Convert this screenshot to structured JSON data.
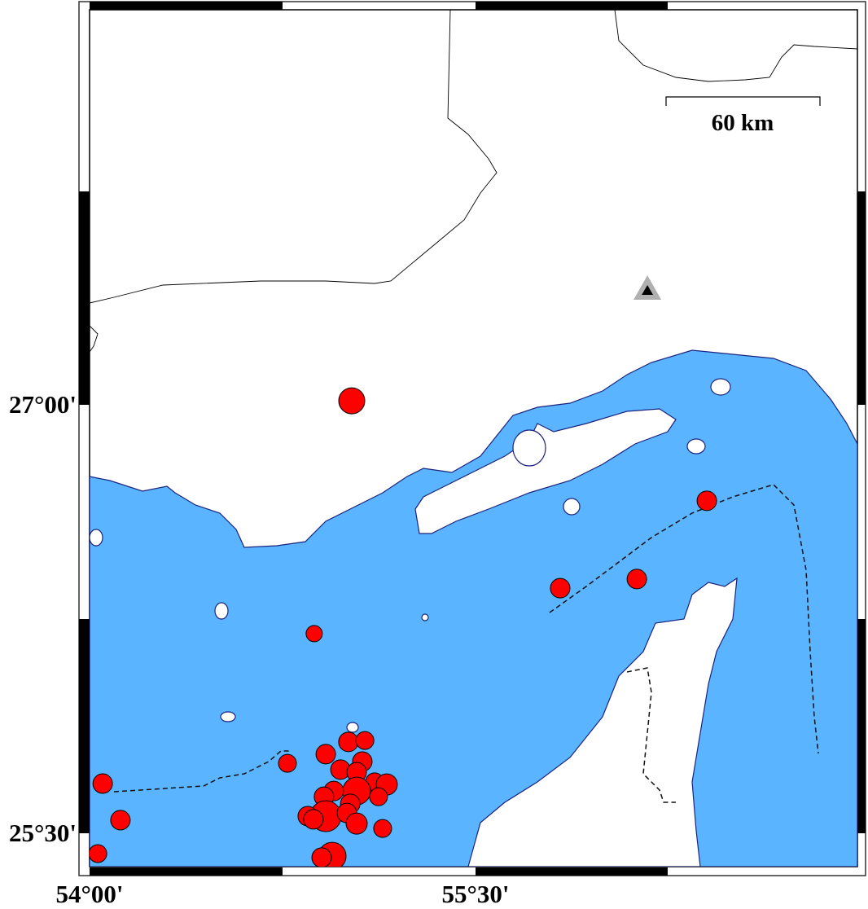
{
  "map": {
    "colors": {
      "water": "#5AB4FF",
      "land": "#FFFFFF",
      "coastline": "#1A237E",
      "event": "#FF0000",
      "station_outer": "#B0B0B0",
      "station_inner": "#000000"
    },
    "lat_labels": [
      "27°00'",
      "25°30'"
    ],
    "lon_labels": [
      "54°00'",
      "55°30'"
    ],
    "extent": {
      "lon": [
        54.0,
        56.984
      ],
      "lat": [
        25.383,
        28.383
      ]
    },
    "scale_bar": {
      "label": "60 km"
    },
    "station": {
      "lon": 56.168,
      "lat": 27.402,
      "icon": "triangle-icon"
    },
    "events": [
      {
        "lon": 55.019,
        "lat": 27.014
      },
      {
        "lon": 56.399,
        "lat": 26.664
      },
      {
        "lon": 55.829,
        "lat": 26.358
      },
      {
        "lon": 56.127,
        "lat": 26.39
      },
      {
        "lon": 54.873,
        "lat": 26.199
      },
      {
        "lon": 54.769,
        "lat": 25.745
      },
      {
        "lon": 54.051,
        "lat": 25.674
      },
      {
        "lon": 54.12,
        "lat": 25.546
      },
      {
        "lon": 54.032,
        "lat": 25.429
      },
      {
        "lon": 54.918,
        "lat": 25.777
      },
      {
        "lon": 55.006,
        "lat": 25.82
      },
      {
        "lon": 55.07,
        "lat": 25.825
      },
      {
        "lon": 55.06,
        "lat": 25.751
      },
      {
        "lon": 54.975,
        "lat": 25.723
      },
      {
        "lon": 55.038,
        "lat": 25.714
      },
      {
        "lon": 55.108,
        "lat": 25.68
      },
      {
        "lon": 55.155,
        "lat": 25.671
      },
      {
        "lon": 55.038,
        "lat": 25.648
      },
      {
        "lon": 55.123,
        "lat": 25.628
      },
      {
        "lon": 54.949,
        "lat": 25.648
      },
      {
        "lon": 54.911,
        "lat": 25.628
      },
      {
        "lon": 55.013,
        "lat": 25.603
      },
      {
        "lon": 54.918,
        "lat": 25.56
      },
      {
        "lon": 54.848,
        "lat": 25.56
      },
      {
        "lon": 54.87,
        "lat": 25.549
      },
      {
        "lon": 55.0,
        "lat": 25.571
      },
      {
        "lon": 55.038,
        "lat": 25.534
      },
      {
        "lon": 55.139,
        "lat": 25.517
      },
      {
        "lon": 54.943,
        "lat": 25.42
      },
      {
        "lon": 54.902,
        "lat": 25.415
      }
    ]
  }
}
